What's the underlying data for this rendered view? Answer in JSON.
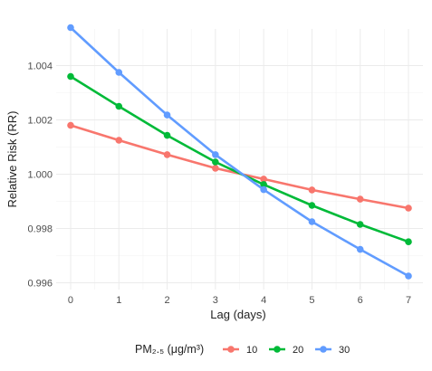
{
  "chart_data": {
    "type": "line",
    "title": "",
    "xlabel": "Lag (days)",
    "ylabel": "Relative Risk (RR)",
    "x": [
      0,
      1,
      2,
      3,
      4,
      5,
      6,
      7
    ],
    "xlim": [
      -0.3,
      7.3
    ],
    "ylim": [
      0.99575,
      1.00535
    ],
    "yticks": [
      0.996,
      0.998,
      1.0,
      1.002,
      1.004
    ],
    "ytick_labels": [
      "0.996",
      "0.998",
      "1.000",
      "1.002",
      "1.004"
    ],
    "xtick_labels": [
      "0",
      "1",
      "2",
      "3",
      "4",
      "5",
      "6",
      "7"
    ],
    "grid": true,
    "legend": {
      "title": "PM₂.₅ (μg/m³)",
      "position": "bottom"
    },
    "series": [
      {
        "name": "10",
        "color": "#F8766D",
        "values": [
          1.0018,
          1.00125,
          1.00072,
          1.00022,
          0.99982,
          0.99942,
          0.99908,
          0.99875
        ]
      },
      {
        "name": "20",
        "color": "#00BA38",
        "values": [
          1.0036,
          1.0025,
          1.00143,
          1.00045,
          0.99962,
          0.99885,
          0.99815,
          0.99751
        ]
      },
      {
        "name": "30",
        "color": "#619CFF",
        "values": [
          1.0054,
          1.00375,
          1.00218,
          1.00072,
          0.99943,
          0.99825,
          0.99723,
          0.99625
        ]
      }
    ]
  }
}
